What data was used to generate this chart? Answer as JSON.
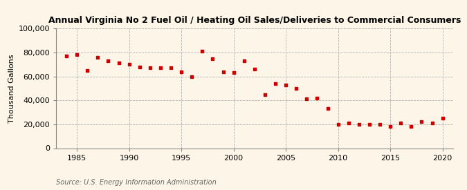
{
  "title": "Annual Virginia No 2 Fuel Oil / Heating Oil Sales/Deliveries to Commercial Consumers",
  "ylabel": "Thousand Gallons",
  "source": "Source: U.S. Energy Information Administration",
  "background_color": "#fdf6e8",
  "marker_color": "#cc0000",
  "years": [
    1984,
    1985,
    1986,
    1987,
    1988,
    1989,
    1990,
    1991,
    1992,
    1993,
    1994,
    1995,
    1996,
    1997,
    1998,
    1999,
    2000,
    2001,
    2002,
    2003,
    2004,
    2005,
    2006,
    2007,
    2008,
    2009,
    2010,
    2011,
    2012,
    2013,
    2014,
    2015,
    2016,
    2017,
    2018,
    2019,
    2020
  ],
  "values": [
    77000,
    78000,
    65000,
    76000,
    73000,
    71000,
    70000,
    68000,
    67000,
    67000,
    67000,
    64000,
    60000,
    81000,
    75000,
    64000,
    63000,
    73000,
    66000,
    45000,
    54000,
    53000,
    50000,
    41000,
    42000,
    33000,
    20000,
    21000,
    20000,
    20000,
    20000,
    18000,
    21000,
    18000,
    22000,
    21000,
    25000
  ],
  "ylim": [
    0,
    100000
  ],
  "xlim": [
    1983,
    2021
  ],
  "yticks": [
    0,
    20000,
    40000,
    60000,
    80000,
    100000
  ],
  "xticks": [
    1985,
    1990,
    1995,
    2000,
    2005,
    2010,
    2015,
    2020
  ],
  "title_fontsize": 9,
  "source_fontsize": 7,
  "ylabel_fontsize": 8,
  "tick_fontsize": 8
}
